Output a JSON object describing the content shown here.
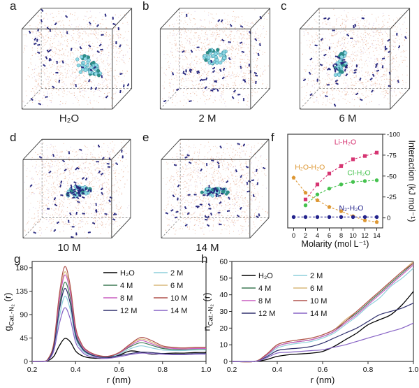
{
  "figure": {
    "background": "#ffffff"
  },
  "sim_colors": {
    "water1": "#ecbca4",
    "water2": "#f0d4c6",
    "water3": "#d7c4e6",
    "water4": "#de9d82",
    "n2": "#27277e",
    "cluster_fill": "#8fdbe6",
    "cluster_edge": "#2f7f96",
    "cluster_dark": "#2e8f85",
    "edge_solid": "#3a3a3a",
    "edge_dashed": "#8a8a8a"
  },
  "panels": [
    {
      "letter": "a",
      "caption": "H₂O",
      "render": {
        "cluster": {
          "u": 0.63,
          "v": 0.4,
          "rx": 0.16,
          "ry": 0.1,
          "angle": -38,
          "n": 46,
          "dark": 0.25
        },
        "n2_cluster": 0
      }
    },
    {
      "letter": "b",
      "caption": "2 M",
      "render": {
        "cluster": {
          "u": 0.5,
          "v": 0.52,
          "rx": 0.14,
          "ry": 0.1,
          "angle": 25,
          "n": 44,
          "dark": 0.2
        },
        "n2_cluster": 0
      }
    },
    {
      "letter": "c",
      "caption": "6 M",
      "render": {
        "cluster": {
          "u": 0.34,
          "v": 0.42,
          "rx": 0.17,
          "ry": 0.05,
          "angle": 75,
          "n": 40,
          "dark": 0.55
        },
        "n2_cluster": 10
      }
    },
    {
      "letter": "d",
      "caption": "10 M",
      "render": {
        "cluster": {
          "u": 0.52,
          "v": 0.47,
          "rx": 0.14,
          "ry": 0.07,
          "angle": 10,
          "n": 40,
          "dark": 0.3
        },
        "n2_cluster": 30
      }
    },
    {
      "letter": "e",
      "caption": "14 M",
      "render": {
        "cluster": {
          "u": 0.5,
          "v": 0.46,
          "rx": 0.16,
          "ry": 0.05,
          "angle": -5,
          "n": 40,
          "dark": 0.5
        },
        "n2_cluster": 18
      }
    }
  ],
  "chart_data": [
    {
      "id": "f",
      "letter": "f",
      "type": "scatter-line",
      "xlabel": "Molarity (mol L⁻¹)",
      "ylabel": "Interaction (kJ mol⁻¹)",
      "xlim": [
        -1,
        15
      ],
      "ylim_bottom_top": [
        12,
        -100
      ],
      "x_ticks": [
        0,
        2,
        4,
        6,
        8,
        10,
        12,
        14
      ],
      "y_ticks": [
        0,
        -25,
        -50,
        -75,
        -100
      ],
      "grid": false,
      "legend_position": "in-plot colored labels",
      "series": [
        {
          "name": "Li-H₂O",
          "color": "#d63472",
          "marker": "square",
          "label_at": [
            8.7,
            -88
          ],
          "label_anchor": "middle",
          "x": [
            2,
            4,
            6,
            8,
            10,
            12,
            14
          ],
          "y": [
            -22,
            -40,
            -53,
            -62,
            -70,
            -74,
            -78
          ]
        },
        {
          "name": "Cl-H₂O",
          "color": "#45c24e",
          "marker": "circle",
          "label_at": [
            11,
            -51
          ],
          "label_anchor": "middle",
          "x": [
            2,
            4,
            6,
            8,
            10,
            12,
            14
          ],
          "y": [
            -15,
            -28,
            -35,
            -40,
            -43,
            -44,
            -45
          ]
        },
        {
          "name": "H₂O-H₂O",
          "color": "#dd9733",
          "marker": "pentagon",
          "label_at": [
            0.2,
            -58
          ],
          "label_anchor": "start",
          "x": [
            0,
            2,
            4,
            6,
            8,
            10,
            12,
            14
          ],
          "y": [
            -48,
            -30,
            -21,
            -13,
            -8,
            -2,
            3,
            5
          ]
        },
        {
          "name": "N₂-H₂O",
          "color": "#23238c",
          "marker": "circle",
          "label_at": [
            9.7,
            -9
          ],
          "label_anchor": "middle",
          "x": [
            0,
            2,
            4,
            6,
            8,
            10,
            12,
            14
          ],
          "y": [
            -1,
            -1,
            -1,
            -1,
            -1,
            -1,
            -1,
            -1
          ]
        }
      ]
    },
    {
      "id": "g",
      "letter": "g",
      "type": "line",
      "xlabel": "r (nm)",
      "ylabel": {
        "main": "g",
        "sub": "Cat.-N₂",
        "rest": " (r)"
      },
      "xlim": [
        0.2,
        1.0
      ],
      "ylim": [
        0,
        192
      ],
      "x_ticks": [
        0.2,
        0.4,
        0.6,
        0.8,
        1.0
      ],
      "y_ticks": [
        0,
        45,
        90,
        135,
        180
      ],
      "grid": false,
      "legend_position": "top-right",
      "r": [
        0.2,
        0.25,
        0.275,
        0.3,
        0.325,
        0.35,
        0.375,
        0.4,
        0.425,
        0.45,
        0.5,
        0.55,
        0.6,
        0.65,
        0.7,
        0.75,
        0.8,
        0.85,
        0.9,
        0.95,
        1.0
      ],
      "series": [
        {
          "name": "H₂O",
          "color": "#000000",
          "v": [
            0,
            0,
            2,
            10,
            30,
            44,
            38,
            20,
            12,
            8,
            6,
            7,
            12,
            20,
            18,
            14,
            15,
            16,
            16,
            17,
            17
          ]
        },
        {
          "name": "2 M",
          "color": "#8ecfdc",
          "v": [
            0,
            0,
            4,
            25,
            85,
            125,
            100,
            45,
            25,
            15,
            9,
            8,
            14,
            24,
            30,
            26,
            22,
            21,
            21,
            22,
            22
          ]
        },
        {
          "name": "4 M",
          "color": "#3e7a55",
          "v": [
            0,
            0,
            5,
            30,
            105,
            152,
            122,
            55,
            30,
            18,
            10,
            9,
            16,
            28,
            36,
            31,
            25,
            23,
            23,
            24,
            24
          ]
        },
        {
          "name": "6 M",
          "color": "#d9b97c",
          "v": [
            0,
            0,
            6,
            34,
            120,
            172,
            138,
            62,
            34,
            21,
            12,
            10,
            17,
            32,
            43,
            37,
            28,
            26,
            25,
            26,
            26
          ]
        },
        {
          "name": "8 M",
          "color": "#c95fc0",
          "v": [
            0,
            0,
            5,
            33,
            116,
            166,
            133,
            60,
            33,
            20,
            11,
            10,
            16,
            30,
            40,
            34,
            27,
            25,
            24,
            25,
            25
          ]
        },
        {
          "name": "10 M",
          "color": "#b0524d",
          "v": [
            0,
            0,
            6,
            36,
            128,
            182,
            146,
            66,
            36,
            22,
            12,
            10,
            17,
            33,
            46,
            40,
            30,
            27,
            26,
            27,
            27
          ]
        },
        {
          "name": "12 M",
          "color": "#30306e",
          "v": [
            0,
            0,
            4,
            28,
            98,
            140,
            112,
            50,
            28,
            17,
            9,
            8,
            11,
            15,
            18,
            17,
            15,
            14,
            14,
            15,
            15
          ]
        },
        {
          "name": "14 M",
          "color": "#8763c5",
          "v": [
            0,
            0,
            3,
            21,
            72,
            103,
            82,
            37,
            21,
            12,
            7,
            6,
            9,
            13,
            16,
            15,
            14,
            13,
            13,
            14,
            14
          ]
        }
      ]
    },
    {
      "id": "h",
      "letter": "h",
      "type": "line",
      "xlabel": "r (nm)",
      "ylabel": {
        "main": "n",
        "sub": "Cat.-N₂",
        "rest": " (r)"
      },
      "xlim": [
        0.2,
        1.0
      ],
      "ylim": [
        0,
        60
      ],
      "x_ticks": [
        0.2,
        0.4,
        0.6,
        0.8,
        1.0
      ],
      "y_ticks": [
        0,
        10,
        20,
        30,
        40,
        50,
        60
      ],
      "grid": false,
      "legend_position": "top-left",
      "r": [
        0.2,
        0.3,
        0.35,
        0.4,
        0.45,
        0.5,
        0.55,
        0.6,
        0.65,
        0.7,
        0.75,
        0.8,
        0.85,
        0.9,
        0.95,
        1.0
      ],
      "series": [
        {
          "name": "H₂O",
          "color": "#000000",
          "v": [
            0,
            0,
            1,
            3,
            4,
            4.5,
            5,
            6,
            9,
            13,
            17,
            22,
            25,
            28,
            34,
            42
          ]
        },
        {
          "name": "2 M",
          "color": "#8ecfdc",
          "v": [
            0,
            0,
            3,
            8,
            10,
            11,
            12,
            14,
            17,
            22,
            27,
            33,
            38,
            45,
            50,
            56
          ]
        },
        {
          "name": "4 M",
          "color": "#3e7a55",
          "v": [
            0,
            0,
            3.5,
            9,
            11,
            12,
            13,
            15,
            18,
            24,
            29,
            35,
            41,
            47,
            53,
            59
          ]
        },
        {
          "name": "6 M",
          "color": "#d9b97c",
          "v": [
            0,
            0,
            4,
            10,
            12,
            13,
            14,
            16,
            19,
            25,
            30,
            36,
            42,
            48,
            54,
            60
          ]
        },
        {
          "name": "8 M",
          "color": "#c95fc0",
          "v": [
            0,
            0,
            3.5,
            9,
            11,
            12,
            13,
            15,
            18,
            23,
            28,
            34,
            40,
            46,
            52,
            58
          ]
        },
        {
          "name": "10 M",
          "color": "#b0524d",
          "v": [
            0,
            0,
            4,
            10,
            12,
            13,
            14,
            16,
            19,
            24,
            30,
            36,
            42,
            48,
            54,
            59
          ]
        },
        {
          "name": "12 M",
          "color": "#30306e",
          "v": [
            0,
            0,
            2.5,
            6.5,
            7.5,
            8,
            9,
            11,
            14,
            17,
            20,
            24,
            28,
            30,
            32,
            35
          ]
        },
        {
          "name": "14 M",
          "color": "#8763c5",
          "v": [
            0,
            0,
            2,
            5,
            5.5,
            6,
            6.5,
            7,
            8.5,
            10,
            12,
            14,
            16,
            18,
            20,
            23
          ]
        }
      ]
    }
  ]
}
